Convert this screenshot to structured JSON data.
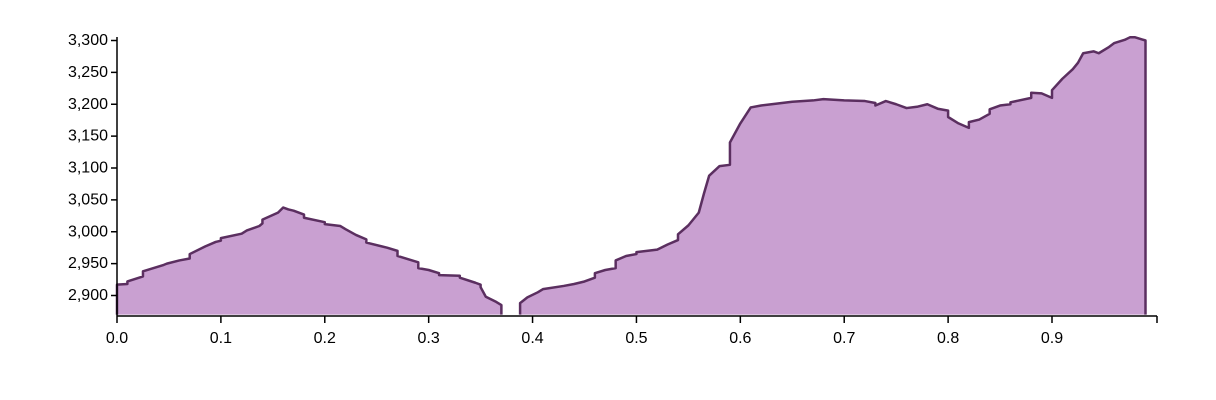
{
  "chart_data": {
    "type": "area",
    "title": "",
    "xlabel": "",
    "ylabel": "",
    "xlim": [
      0,
      0.99
    ],
    "ylim": [
      2870,
      3310
    ],
    "x_ticks": [
      0.0,
      0.1,
      0.2,
      0.3,
      0.4,
      0.5,
      0.6,
      0.7,
      0.8,
      0.9
    ],
    "x_tick_labels": [
      "0.0",
      "0.1",
      "0.2",
      "0.3",
      "0.4",
      "0.5",
      "0.6",
      "0.7",
      "0.8",
      "0.9"
    ],
    "y_ticks": [
      2900,
      2950,
      3000,
      3050,
      3100,
      3150,
      3200,
      3250,
      3300
    ],
    "y_tick_labels": [
      "2,900",
      "2,950",
      "3,000",
      "3,050",
      "3,100",
      "3,150",
      "3,200",
      "3,250",
      "3,300"
    ],
    "grid": false,
    "fill_color": "#c9a0d1",
    "line_color": "#5b2f60",
    "segments": [
      {
        "x": [
          0.0,
          0.0,
          0.01,
          0.01,
          0.025,
          0.025,
          0.045,
          0.048,
          0.06,
          0.07,
          0.07,
          0.085,
          0.095,
          0.1,
          0.1,
          0.12,
          0.125,
          0.137,
          0.14,
          0.14,
          0.155,
          0.16,
          0.165,
          0.17,
          0.18,
          0.18,
          0.2,
          0.2,
          0.215,
          0.218,
          0.22,
          0.23,
          0.24,
          0.24,
          0.26,
          0.27,
          0.27,
          0.29,
          0.29,
          0.3,
          0.31,
          0.31,
          0.33,
          0.33,
          0.345,
          0.35,
          0.35,
          0.355,
          0.365,
          0.37,
          0.37
        ],
        "y": [
          2870,
          2917,
          2918,
          2922,
          2930,
          2938,
          2948,
          2950,
          2955,
          2958,
          2965,
          2977,
          2984,
          2986,
          2990,
          2997,
          3002,
          3009,
          3013,
          3019,
          3030,
          3038,
          3035,
          3033,
          3027,
          3022,
          3015,
          3012,
          3009,
          3006,
          3004,
          2995,
          2988,
          2983,
          2975,
          2970,
          2962,
          2952,
          2943,
          2940,
          2935,
          2932,
          2931,
          2928,
          2920,
          2917,
          2913,
          2898,
          2890,
          2885,
          2870
        ]
      },
      {
        "x": [
          0.388,
          0.388,
          0.395,
          0.405,
          0.41,
          0.43,
          0.44,
          0.45,
          0.46,
          0.46,
          0.47,
          0.48,
          0.48,
          0.49,
          0.5,
          0.5,
          0.52,
          0.53,
          0.54,
          0.54,
          0.55,
          0.56,
          0.565,
          0.57,
          0.58,
          0.59,
          0.59,
          0.6,
          0.61,
          0.62,
          0.63,
          0.65,
          0.67,
          0.68,
          0.69,
          0.7,
          0.72,
          0.73,
          0.73,
          0.74,
          0.75,
          0.76,
          0.77,
          0.78,
          0.79,
          0.8,
          0.8,
          0.81,
          0.82,
          0.82,
          0.83,
          0.84,
          0.84,
          0.85,
          0.86,
          0.86,
          0.88,
          0.88,
          0.89,
          0.9,
          0.9,
          0.91,
          0.92,
          0.925,
          0.93,
          0.94,
          0.945,
          0.955,
          0.96,
          0.97,
          0.975,
          0.98,
          0.99,
          0.99
        ],
        "y": [
          2870,
          2888,
          2897,
          2905,
          2910,
          2915,
          2918,
          2922,
          2928,
          2935,
          2940,
          2943,
          2955,
          2962,
          2965,
          2968,
          2972,
          2980,
          2987,
          2996,
          3010,
          3030,
          3060,
          3088,
          3103,
          3105,
          3140,
          3170,
          3195,
          3198,
          3200,
          3204,
          3206,
          3208,
          3207,
          3206,
          3205,
          3202,
          3198,
          3205,
          3200,
          3194,
          3196,
          3200,
          3193,
          3190,
          3180,
          3170,
          3163,
          3172,
          3176,
          3185,
          3192,
          3198,
          3200,
          3203,
          3210,
          3218,
          3217,
          3210,
          3222,
          3240,
          3255,
          3265,
          3280,
          3283,
          3280,
          3290,
          3296,
          3301,
          3305,
          3305,
          3300,
          2870
        ]
      }
    ]
  }
}
